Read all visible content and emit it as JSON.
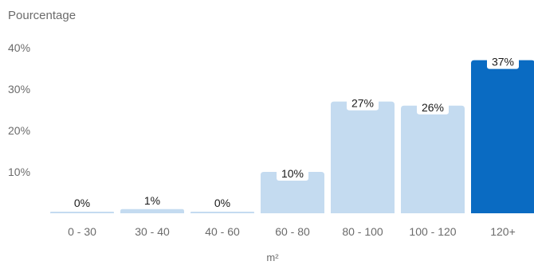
{
  "chart_data": {
    "type": "bar",
    "ylabel": "Pourcentage",
    "xlabel": "m²",
    "yticks": [
      "10%",
      "20%",
      "30%",
      "40%"
    ],
    "ytick_values": [
      10,
      20,
      30,
      40
    ],
    "ylim": [
      0,
      41
    ],
    "categories": [
      "0 - 30",
      "30 - 40",
      "40 - 60",
      "60 - 80",
      "80 - 100",
      "100 - 120",
      "120+"
    ],
    "values": [
      0,
      1,
      0,
      10,
      27,
      26,
      37
    ],
    "data_labels": [
      "0%",
      "1%",
      "0%",
      "10%",
      "27%",
      "26%",
      "37%"
    ],
    "highlight_index": 6,
    "colors": {
      "bar": "#c4dbf0",
      "highlight": "#0a6bc2",
      "text": "#6b6b6b",
      "label": "#1a1a1a"
    },
    "grid": false
  }
}
